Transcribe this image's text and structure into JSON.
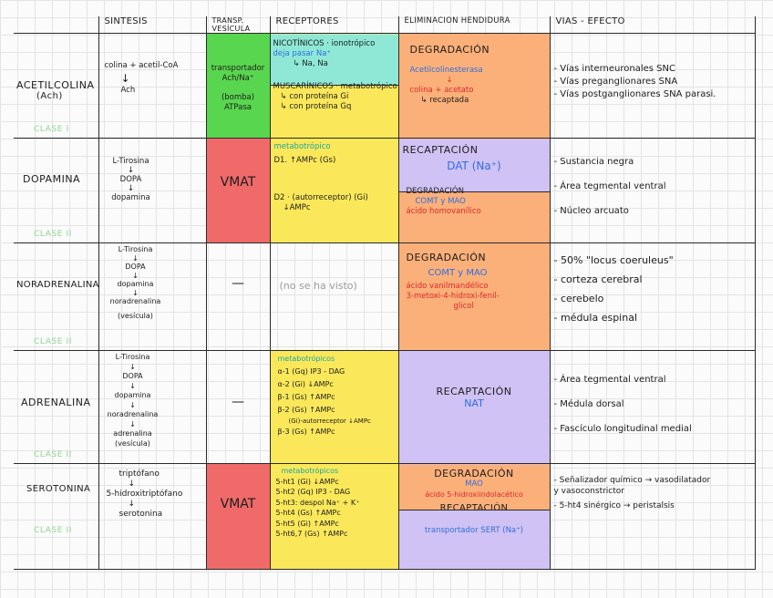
{
  "headers": {
    "sintesis": "SÍNTESIS",
    "transp": "TRANSP. VESÍCULA",
    "receptores": "RECEPTORES",
    "eliminacion": "ELIMINACIÓN HENDIDURA",
    "vias": "VÍAS - EFECTO"
  },
  "rows": {
    "ach": {
      "name": "ACETILCOLINA",
      "abbr": "(Ach)",
      "clase": "CLASE I",
      "sint1": "colina + acetil-CoA",
      "sint_arrow": "↓",
      "sint2": "Ach",
      "transp1": "transportador",
      "transp2": "Ach/Na⁺",
      "transp3": "(bomba)",
      "transp4": "ATPasa",
      "rec_a1": "NICOTÍNICOS · ionotrópico",
      "rec_a2": "deja pasar Na⁺",
      "rec_a3": "↳ Na, Na",
      "rec_b1": "MUSCARÍNICOS · metabotrópico",
      "rec_b2": "↳ con proteína Gi",
      "rec_b3": "↳ con proteína Gq",
      "elim1": "DEGRADACIÓN",
      "elim2": "Acetilcolinesterasa",
      "elim3": "↓",
      "elim4": "colina + acetato",
      "elim5": "↳ recaptada",
      "vias": [
        "- Vías interneuronales SNC",
        "- Vías preganglionares SNA",
        "- Vías postganglionares SNA parasi."
      ]
    },
    "dop": {
      "name": "DOPAMINA",
      "clase": "CLASE II",
      "sint": [
        "L-Tirosina",
        "↓",
        "DOPA",
        "↓",
        "dopamina"
      ],
      "transp": "VMAT",
      "rec1": "metabotrópico",
      "rec2": "D1. ↑AMPc (Gs)",
      "rec3": "D2 · (autorreceptor) (Gi)",
      "rec4": "↓AMPc",
      "elim1": "RECAPTACIÓN",
      "elim2": "DAT (Na⁺)",
      "elim3": "DEGRADACIÓN",
      "elim4": "COMT y MAO",
      "elim5": "ácido homovanílico",
      "vias": [
        "- Sustancia negra",
        "- Área tegmental ventral",
        "- Núcleo arcuato"
      ]
    },
    "nor": {
      "name": "NORADRENALINA",
      "clase": "CLASE II",
      "sint": [
        "L-Tirosina",
        "↓",
        "DOPA",
        "↓",
        "dopamina",
        "↓",
        "noradrenalina",
        "(vesícula)"
      ],
      "transp": "—",
      "rec": "(no se ha visto)",
      "elim1": "DEGRADACIÓN",
      "elim2": "COMT y MAO",
      "elim3": "ácido vanilmandélico",
      "elim4": "3-metoxi-4-hidroxi-fenil-",
      "elim5": "glicol",
      "vias": [
        "- 50% \"locus coeruleus\"",
        "- corteza cerebral",
        "- cerebelo",
        "- médula espinal"
      ]
    },
    "adr": {
      "name": "ADRENALINA",
      "clase": "CLASE II",
      "sint": [
        "L-Tirosina",
        "↓",
        "DOPA",
        "↓",
        "dopamina",
        "↓",
        "noradrenalina",
        "↓",
        "adrenalina",
        "(vesícula)"
      ],
      "transp": "—",
      "rec": [
        "metabotrópicos",
        "α-1 (Gq) IP3 - DAG",
        "α-2 (Gi) ↓AMPc",
        "β-1 (Gs) ↑AMPc",
        "β-2 (Gs) ↑AMPc",
        "(Gi)-autorreceptor ↓AMPc",
        "β-3 (Gs) ↑AMPc"
      ],
      "elim1": "RECAPTACIÓN",
      "elim2": "NAT",
      "vias": [
        "- Área tegmental ventral",
        "- Médula dorsal",
        "- Fascículo longitudinal medial"
      ]
    },
    "ser": {
      "name": "SEROTONINA",
      "clase": "CLASE II",
      "sint": [
        "triptófano",
        "↓",
        "5-hidroxitriptófano",
        "↓",
        "serotonina"
      ],
      "transp": "VMAT",
      "rec": [
        "metabotrópicos",
        "5-ht1 (Gi) ↓AMPc",
        "5-ht2 (Gq) IP3 - DAG",
        "5-ht3: despol Na⁺ + K⁺",
        "5-ht4 (Gs) ↑AMPc",
        "5-ht5 (Gi) ↑AMPc",
        "5-ht6,7 (Gs) ↑AMPc"
      ],
      "elim1": "DEGRADACIÓN",
      "elim2": "MAO",
      "elim3": "ácido 5-hidroxiindolacético",
      "elim4": "RECAPTACIÓN",
      "elim5": "transportador SERT (Na⁺)",
      "vias": [
        "- Señalizador químico → vasodilatador",
        "  y vasoconstrictor",
        "- 5-ht4 sinérgico → peristalsis"
      ]
    }
  },
  "colors": {
    "green": "#59d64f",
    "red": "#f06a6a",
    "yellow": "#fbe85a",
    "orange": "#fbb07a",
    "purple": "#d0c2f4",
    "cyan": "#8fe8d6"
  }
}
